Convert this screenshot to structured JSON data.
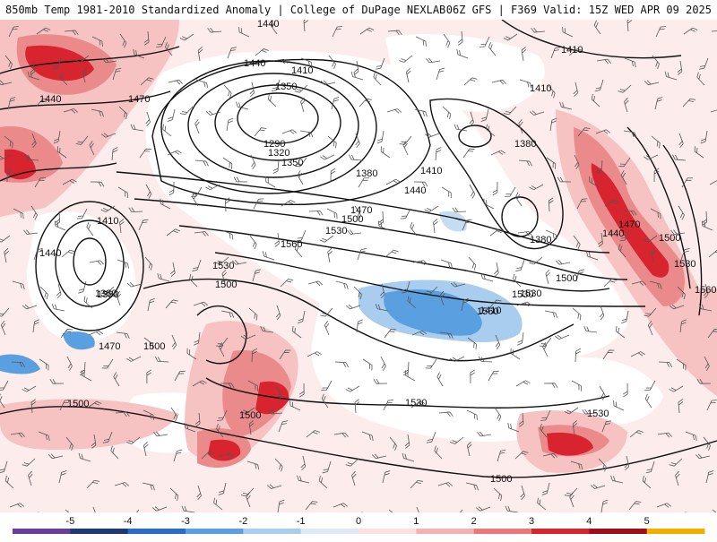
{
  "header": {
    "left_title": "850mb Temp 1981-2010 Standardized Anomaly | College of DuPage NEXLAB",
    "right_title": "06Z GFS | F369 Valid: 15Z WED APR 09 2025"
  },
  "contour_labels": [
    {
      "text": "1440"
    },
    {
      "text": "1410"
    },
    {
      "text": "1440"
    },
    {
      "text": "1470"
    },
    {
      "text": "1440"
    },
    {
      "text": "1410"
    },
    {
      "text": "1350"
    },
    {
      "text": "1290"
    },
    {
      "text": "1320"
    },
    {
      "text": "1350"
    },
    {
      "text": "1380"
    },
    {
      "text": "1410"
    },
    {
      "text": "1440"
    },
    {
      "text": "1470"
    },
    {
      "text": "1500"
    },
    {
      "text": "1530"
    },
    {
      "text": "1500"
    },
    {
      "text": "1410"
    },
    {
      "text": "1440"
    },
    {
      "text": "1380"
    },
    {
      "text": "1560"
    },
    {
      "text": "1530"
    },
    {
      "text": "1500"
    },
    {
      "text": "1470"
    },
    {
      "text": "1380"
    },
    {
      "text": "1410"
    },
    {
      "text": "1380"
    },
    {
      "text": "1440"
    },
    {
      "text": "1470"
    },
    {
      "text": "1500"
    },
    {
      "text": "1530"
    },
    {
      "text": "1500"
    },
    {
      "text": "1560"
    },
    {
      "text": "1530"
    },
    {
      "text": "1380"
    },
    {
      "text": "1410"
    },
    {
      "text": "1560"
    },
    {
      "text": "1530"
    },
    {
      "text": "1530"
    },
    {
      "text": "1500"
    },
    {
      "text": "1530"
    },
    {
      "text": "1500"
    },
    {
      "text": "1500"
    }
  ],
  "colorbar": {
    "ticks": [
      "-5",
      "-4",
      "-3",
      "-2",
      "-1",
      "0",
      "1",
      "2",
      "3",
      "4",
      "5"
    ],
    "colors": [
      "#6a3d9a",
      "#1f3a73",
      "#2b6cc4",
      "#5aa0e0",
      "#a8cdee",
      "#dde9f6",
      "#fbe0e0",
      "#f4b3b3",
      "#ea7a7a",
      "#d8242f",
      "#9b0e1a",
      "#f0b000"
    ]
  }
}
